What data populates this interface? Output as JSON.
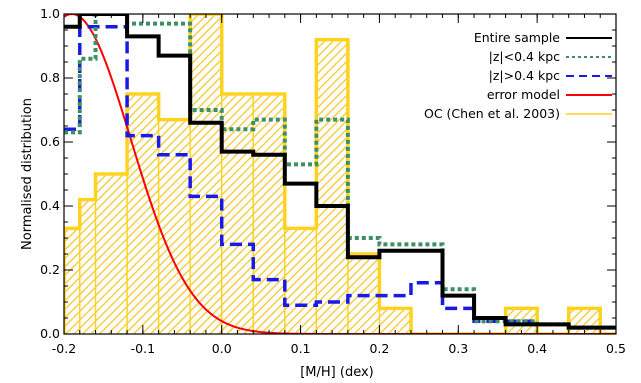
{
  "chart_data": {
    "type": "step histogram",
    "xlabel": "[M/H] (dex)",
    "ylabel": "Normalised distribution",
    "xlim": [
      -0.2,
      0.5
    ],
    "ylim": [
      0.0,
      1.0
    ],
    "xticks": [
      "-0.2",
      "-0.1",
      "0.0",
      "0.1",
      "0.2",
      "0.3",
      "0.4",
      "0.5"
    ],
    "yticks": [
      "0.0",
      "0.2",
      "0.4",
      "0.6",
      "0.8",
      "1.0"
    ],
    "grid": false,
    "legend_position": "top-right",
    "bin_edges": [
      -0.2,
      -0.18,
      -0.16,
      -0.12,
      -0.08,
      -0.04,
      0.0,
      0.04,
      0.08,
      0.12,
      0.16,
      0.2,
      0.24,
      0.28,
      0.32,
      0.36,
      0.4,
      0.44,
      0.48,
      0.5
    ],
    "series": [
      {
        "name": "Entire sample",
        "color": "#000000",
        "style": "solid",
        "values": [
          0.96,
          1.0,
          1.0,
          0.93,
          0.87,
          0.66,
          0.57,
          0.56,
          0.47,
          0.4,
          0.24,
          0.26,
          0.26,
          0.12,
          0.05,
          0.03,
          0.03,
          0.02,
          0.02
        ]
      },
      {
        "name": "|z|<0.4 kpc",
        "color": "#3d8f66",
        "style": "dotted",
        "values": [
          0.63,
          0.86,
          1.0,
          0.97,
          0.97,
          0.7,
          0.64,
          0.67,
          0.53,
          0.67,
          0.3,
          0.28,
          0.28,
          0.14,
          0.04,
          0.04,
          0.03,
          0.02,
          0.02
        ]
      },
      {
        "name": "|z|>0.4 kpc",
        "color": "#1a1ae6",
        "style": "dashed",
        "values": [
          0.64,
          0.96,
          0.96,
          0.62,
          0.56,
          0.43,
          0.28,
          0.17,
          0.09,
          0.1,
          0.12,
          0.12,
          0.16,
          0.08,
          0.04,
          0.04,
          0.03,
          0.02,
          0.02
        ]
      },
      {
        "name": "error model",
        "color": "#ff0000",
        "style": "curve",
        "curve": {
          "amplitude": 1.0,
          "mean": -0.19,
          "sigma": 0.075
        }
      },
      {
        "name": "OC (Chen et al. 2003)",
        "color": "#ffd21f",
        "style": "hatched-fill",
        "values": [
          0.33,
          0.42,
          0.5,
          0.75,
          0.67,
          1.0,
          0.75,
          0.75,
          0.33,
          0.92,
          0.25,
          0.08,
          0.0,
          0.0,
          0.0,
          0.08,
          0.0,
          0.08,
          0.0
        ]
      }
    ]
  }
}
